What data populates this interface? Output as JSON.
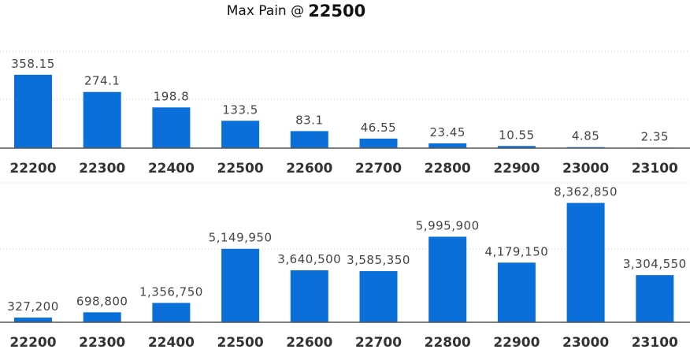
{
  "header": {
    "title_prefix": "Max Pain @",
    "title_value": "22500"
  },
  "chart_data": [
    {
      "type": "bar",
      "categories": [
        "22200",
        "22300",
        "22400",
        "22500",
        "22600",
        "22700",
        "22800",
        "22900",
        "23000",
        "23100"
      ],
      "values": [
        358.15,
        274.1,
        198.8,
        133.5,
        83.1,
        46.55,
        23.45,
        10.55,
        4.85,
        2.35
      ],
      "data_labels": [
        "358.15",
        "274.1",
        "198.8",
        "133.5",
        "83.1",
        "46.55",
        "23.45",
        "10.55",
        "4.85",
        "2.35"
      ],
      "ylim": [
        0,
        500
      ],
      "grid": true,
      "color": "#0a6fd8"
    },
    {
      "type": "bar",
      "categories": [
        "22200",
        "22300",
        "22400",
        "22500",
        "22600",
        "22700",
        "22800",
        "22900",
        "23000",
        "23100"
      ],
      "values": [
        327200,
        698800,
        1356750,
        5149950,
        3640500,
        3585350,
        5995900,
        4179150,
        8362850,
        3304550
      ],
      "data_labels": [
        "327,200",
        "698,800",
        "1,356,750",
        "5,149,950",
        "3,640,500",
        "3,585,350",
        "5,995,900",
        "4,179,150",
        "8,362,850",
        "3,304,550"
      ],
      "ylim": [
        0,
        9000000
      ],
      "grid": true,
      "color": "#0a6fd8"
    }
  ]
}
